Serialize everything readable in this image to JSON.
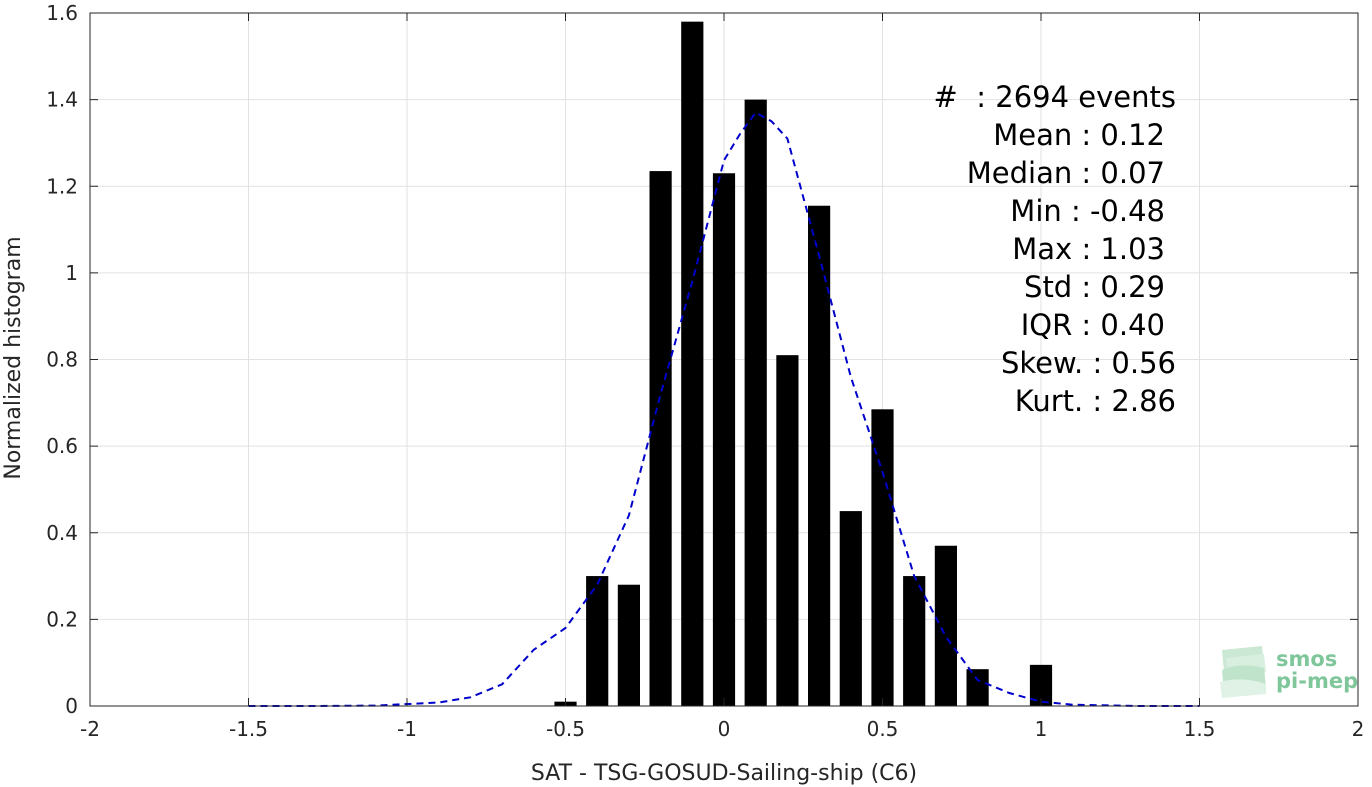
{
  "chart_data": {
    "type": "bar",
    "xlabel": "SAT - TSG-GOSUD-Sailing-ship (C6)",
    "ylabel": "Normalized histogram",
    "xlim": [
      -2,
      2
    ],
    "ylim": [
      0,
      1.6
    ],
    "grid": true,
    "xticks": [
      {
        "value": -2,
        "label": "-2"
      },
      {
        "value": -1.5,
        "label": "-1.5"
      },
      {
        "value": -1,
        "label": "-1"
      },
      {
        "value": -0.5,
        "label": "-0.5"
      },
      {
        "value": 0,
        "label": "0"
      },
      {
        "value": 0.5,
        "label": "0.5"
      },
      {
        "value": 1,
        "label": "1"
      },
      {
        "value": 1.5,
        "label": "1.5"
      },
      {
        "value": 2,
        "label": "2"
      }
    ],
    "yticks": [
      {
        "value": 0,
        "label": "0"
      },
      {
        "value": 0.2,
        "label": "0.2"
      },
      {
        "value": 0.4,
        "label": "0.4"
      },
      {
        "value": 0.6,
        "label": "0.6"
      },
      {
        "value": 0.8,
        "label": "0.8"
      },
      {
        "value": 1.0,
        "label": "1"
      },
      {
        "value": 1.2,
        "label": "1.2"
      },
      {
        "value": 1.4,
        "label": "1.4"
      },
      {
        "value": 1.6,
        "label": "1.6"
      }
    ],
    "bar_width": 0.07,
    "bars": [
      {
        "x": -0.5,
        "y": 0.01
      },
      {
        "x": -0.4,
        "y": 0.3
      },
      {
        "x": -0.3,
        "y": 0.28
      },
      {
        "x": -0.2,
        "y": 1.235
      },
      {
        "x": -0.1,
        "y": 1.58
      },
      {
        "x": 0.0,
        "y": 1.23
      },
      {
        "x": 0.1,
        "y": 1.4
      },
      {
        "x": 0.2,
        "y": 0.81
      },
      {
        "x": 0.3,
        "y": 1.155
      },
      {
        "x": 0.4,
        "y": 0.45
      },
      {
        "x": 0.5,
        "y": 0.685
      },
      {
        "x": 0.6,
        "y": 0.3
      },
      {
        "x": 0.7,
        "y": 0.37
      },
      {
        "x": 0.8,
        "y": 0.085
      },
      {
        "x": 1.0,
        "y": 0.095
      }
    ],
    "bar_color": "#000000",
    "fit_curve": {
      "style": "dashed",
      "color": "#0000cc",
      "points": [
        [
          -1.5,
          0.0
        ],
        [
          -1.3,
          0.0
        ],
        [
          -1.1,
          0.001
        ],
        [
          -0.9,
          0.008
        ],
        [
          -0.8,
          0.02
        ],
        [
          -0.7,
          0.05
        ],
        [
          -0.6,
          0.13
        ],
        [
          -0.5,
          0.18
        ],
        [
          -0.4,
          0.28
        ],
        [
          -0.3,
          0.44
        ],
        [
          -0.2,
          0.72
        ],
        [
          -0.1,
          0.98
        ],
        [
          0.0,
          1.26
        ],
        [
          0.05,
          1.32
        ],
        [
          0.1,
          1.37
        ],
        [
          0.15,
          1.35
        ],
        [
          0.2,
          1.31
        ],
        [
          0.3,
          1.04
        ],
        [
          0.4,
          0.76
        ],
        [
          0.5,
          0.54
        ],
        [
          0.6,
          0.3
        ],
        [
          0.7,
          0.16
        ],
        [
          0.8,
          0.06
        ],
        [
          0.9,
          0.03
        ],
        [
          1.0,
          0.01
        ],
        [
          1.1,
          0.003
        ],
        [
          1.3,
          0.0
        ],
        [
          1.5,
          0.0
        ]
      ]
    },
    "annotations": [
      "#  : 2694 events",
      "Mean : 0.12",
      "Median : 0.07",
      "Min : -0.48",
      "Max : 1.03",
      "Std : 0.29",
      "IQR : 0.40",
      "Skew. : 0.56",
      "Kurt. : 2.86"
    ]
  },
  "logo": {
    "line1": "smos",
    "line2": "pi-mep"
  }
}
